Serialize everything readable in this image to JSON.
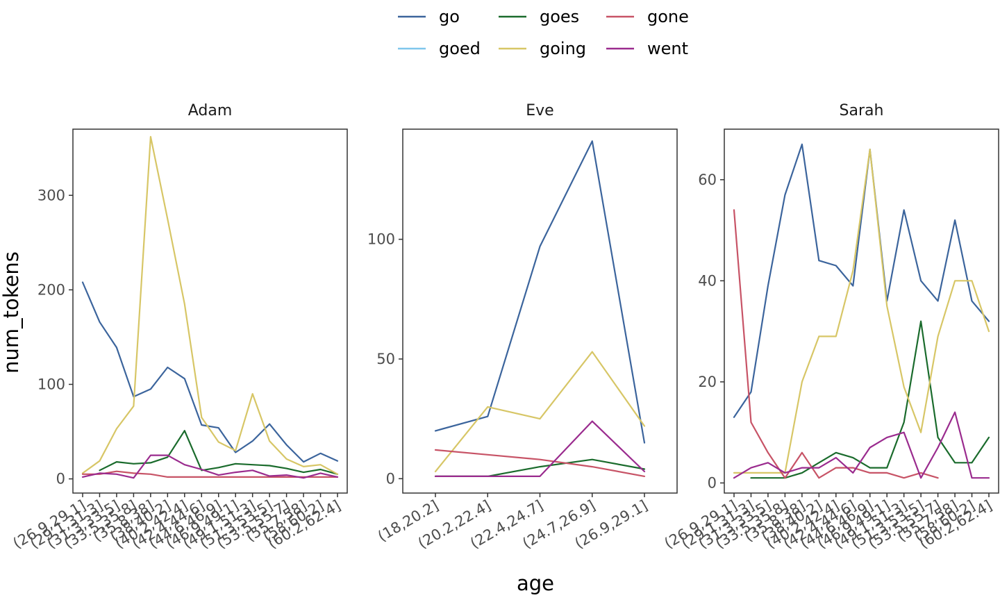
{
  "chart_data": {
    "type": "line",
    "xlabel": "age",
    "ylabel": "num_tokens",
    "legend_position": "top",
    "legend": [
      {
        "name": "go",
        "color": "#3B649C"
      },
      {
        "name": "goed",
        "color": "#7FC6EC"
      },
      {
        "name": "goes",
        "color": "#1A6B2C"
      },
      {
        "name": "going",
        "color": "#D7C666"
      },
      {
        "name": "gone",
        "color": "#C75366"
      },
      {
        "name": "went",
        "color": "#9A2B8E"
      }
    ],
    "panels": [
      {
        "title": "Adam",
        "ylim": [
          -15,
          370
        ],
        "yticks": [
          0,
          100,
          200,
          300
        ],
        "categories": [
          "(26.9,29.1]",
          "(29.1,31.3]",
          "(31.3,33.5]",
          "(33.5,35.8]",
          "(35.8,38]",
          "(38,40.2]",
          "(40.2,42.4]",
          "(42.4,44.6]",
          "(44.6,46.9]",
          "(46.9,49.1]",
          "(49.1,51.3]",
          "(51.3,53.5]",
          "(53.5,55.7]",
          "(55.7,58]",
          "(58,60.2]",
          "(60.2,62.4]"
        ],
        "series": [
          {
            "name": "go",
            "values": [
              208,
              166,
              139,
              87,
              95,
              118,
              106,
              57,
              54,
              28,
              40,
              58,
              36,
              18,
              27,
              19
            ]
          },
          {
            "name": "goes",
            "values": [
              null,
              9,
              18,
              16,
              17,
              23,
              51,
              9,
              12,
              16,
              15,
              14,
              11,
              7,
              10,
              5
            ]
          },
          {
            "name": "going",
            "values": [
              6,
              19,
              53,
              77,
              362,
              275,
              185,
              65,
              39,
              30,
              90,
              40,
              21,
              13,
              15,
              5
            ]
          },
          {
            "name": "gone",
            "values": [
              5,
              5,
              8,
              6,
              5,
              2,
              2,
              2,
              2,
              2,
              2,
              2,
              2,
              2,
              2,
              2
            ]
          },
          {
            "name": "went",
            "values": [
              2,
              6,
              5,
              1,
              25,
              25,
              15,
              10,
              4,
              7,
              9,
              3,
              4,
              1,
              6,
              2
            ]
          }
        ]
      },
      {
        "title": "Eve",
        "ylim": [
          -6,
          146
        ],
        "yticks": [
          0,
          50,
          100
        ],
        "categories": [
          "(18,20.2]",
          "(20.2,22.4]",
          "(22.4,24.7]",
          "(24.7,26.9]",
          "(26.9,29.1]"
        ],
        "series": [
          {
            "name": "go",
            "values": [
              20,
              26,
              97,
              141,
              15
            ]
          },
          {
            "name": "goes",
            "values": [
              1,
              1,
              5,
              8,
              4
            ]
          },
          {
            "name": "going",
            "values": [
              3,
              30,
              25,
              53,
              22
            ]
          },
          {
            "name": "gone",
            "values": [
              12,
              10,
              8,
              5,
              1
            ]
          },
          {
            "name": "went",
            "values": [
              1,
              1,
              1,
              24,
              3
            ]
          }
        ]
      },
      {
        "title": "Sarah",
        "ylim": [
          -2,
          70
        ],
        "yticks": [
          0,
          20,
          40,
          60
        ],
        "categories": [
          "(26.9,29.1]",
          "(29.1,31.3]",
          "(31.3,33.5]",
          "(33.5,35.8]",
          "(35.8,38]",
          "(38,40.2]",
          "(40.2,42.4]",
          "(42.4,44.6]",
          "(44.6,46.9]",
          "(46.9,49.1]",
          "(49.1,51.3]",
          "(51.3,53.5]",
          "(53.5,55.7]",
          "(55.7,58]",
          "(58,60.2]",
          "(60.2,62.4]"
        ],
        "series": [
          {
            "name": "go",
            "values": [
              13,
              18,
              39,
              57,
              67,
              44,
              43,
              39,
              66,
              36,
              54,
              40,
              36,
              52,
              36,
              32
            ]
          },
          {
            "name": "goes",
            "values": [
              null,
              1,
              1,
              1,
              2,
              4,
              6,
              5,
              3,
              3,
              12,
              32,
              9,
              4,
              4,
              9
            ]
          },
          {
            "name": "going",
            "values": [
              2,
              2,
              2,
              2,
              20,
              29,
              29,
              42,
              66,
              35,
              19,
              10,
              29,
              40,
              40,
              30
            ]
          },
          {
            "name": "gone",
            "values": [
              54,
              12,
              6,
              1,
              6,
              1,
              3,
              3,
              2,
              2,
              1,
              2,
              1,
              null,
              null,
              null
            ]
          },
          {
            "name": "went",
            "values": [
              1,
              3,
              4,
              2,
              3,
              3,
              5,
              2,
              7,
              9,
              10,
              1,
              7,
              14,
              1,
              1
            ]
          }
        ]
      }
    ]
  }
}
